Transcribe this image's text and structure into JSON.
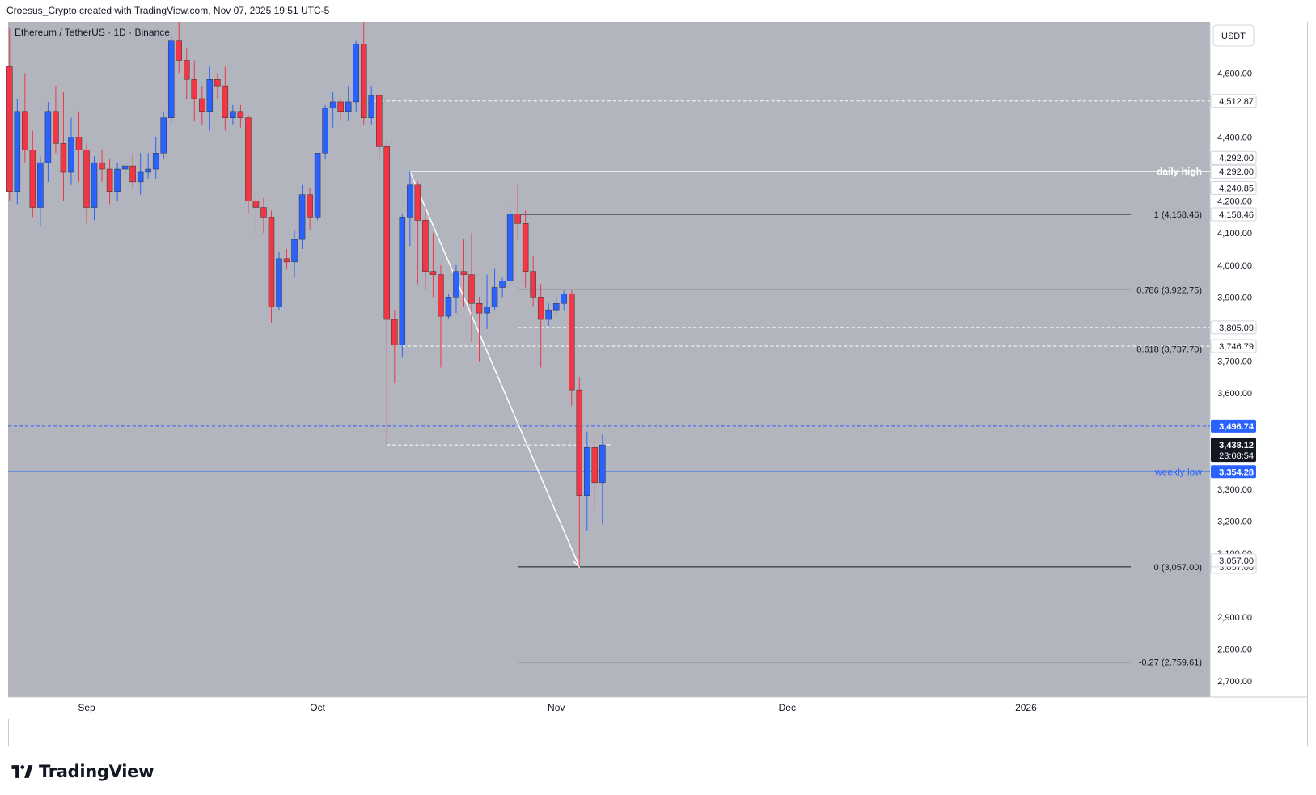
{
  "header": {
    "attribution": "Croesus_Crypto created with TradingView.com, Nov 07, 2025 19:51 UTC-5"
  },
  "chart_data": {
    "type": "candlestick",
    "symbol_line": "Ethereum / TetherUS · 1D · Binance",
    "currency": "USDT",
    "ylim": [
      2650,
      4760
    ],
    "y_ticks": [
      2700,
      2800,
      2900,
      3100,
      3200,
      3300,
      3600,
      3700,
      3900,
      4000,
      4100,
      4200,
      4400,
      4600
    ],
    "x_labels": [
      {
        "label": "Sep",
        "date": "2025-09-01"
      },
      {
        "label": "Oct",
        "date": "2025-10-01"
      },
      {
        "label": "Nov",
        "date": "2025-11-01"
      },
      {
        "label": "Dec",
        "date": "2025-12-01"
      },
      {
        "label": "2026",
        "date": "2026-01-01"
      }
    ],
    "candles": [
      {
        "date": "2025-08-22",
        "o": 4620,
        "h": 4740,
        "l": 4200,
        "c": 4230
      },
      {
        "date": "2025-08-23",
        "o": 4230,
        "h": 4520,
        "l": 4190,
        "c": 4480
      },
      {
        "date": "2025-08-24",
        "o": 4480,
        "h": 4600,
        "l": 4320,
        "c": 4360
      },
      {
        "date": "2025-08-25",
        "o": 4360,
        "h": 4420,
        "l": 4150,
        "c": 4180
      },
      {
        "date": "2025-08-26",
        "o": 4180,
        "h": 4340,
        "l": 4120,
        "c": 4320
      },
      {
        "date": "2025-08-27",
        "o": 4320,
        "h": 4510,
        "l": 4260,
        "c": 4480
      },
      {
        "date": "2025-08-28",
        "o": 4480,
        "h": 4560,
        "l": 4350,
        "c": 4380
      },
      {
        "date": "2025-08-29",
        "o": 4380,
        "h": 4540,
        "l": 4200,
        "c": 4290
      },
      {
        "date": "2025-08-30",
        "o": 4290,
        "h": 4460,
        "l": 4250,
        "c": 4400
      },
      {
        "date": "2025-08-31",
        "o": 4400,
        "h": 4480,
        "l": 4260,
        "c": 4360
      },
      {
        "date": "2025-09-01",
        "o": 4360,
        "h": 4380,
        "l": 4130,
        "c": 4180
      },
      {
        "date": "2025-09-02",
        "o": 4180,
        "h": 4340,
        "l": 4140,
        "c": 4320
      },
      {
        "date": "2025-09-03",
        "o": 4320,
        "h": 4360,
        "l": 4260,
        "c": 4300
      },
      {
        "date": "2025-09-04",
        "o": 4300,
        "h": 4330,
        "l": 4190,
        "c": 4230
      },
      {
        "date": "2025-09-05",
        "o": 4230,
        "h": 4320,
        "l": 4200,
        "c": 4300
      },
      {
        "date": "2025-09-06",
        "o": 4300,
        "h": 4320,
        "l": 4280,
        "c": 4310
      },
      {
        "date": "2025-09-07",
        "o": 4310,
        "h": 4345,
        "l": 4240,
        "c": 4260
      },
      {
        "date": "2025-09-08",
        "o": 4260,
        "h": 4350,
        "l": 4220,
        "c": 4290
      },
      {
        "date": "2025-09-09",
        "o": 4290,
        "h": 4350,
        "l": 4270,
        "c": 4300
      },
      {
        "date": "2025-09-10",
        "o": 4300,
        "h": 4400,
        "l": 4270,
        "c": 4350
      },
      {
        "date": "2025-09-11",
        "o": 4350,
        "h": 4480,
        "l": 4330,
        "c": 4460
      },
      {
        "date": "2025-09-12",
        "o": 4460,
        "h": 4720,
        "l": 4440,
        "c": 4700
      },
      {
        "date": "2025-09-13",
        "o": 4700,
        "h": 4760,
        "l": 4600,
        "c": 4640
      },
      {
        "date": "2025-09-14",
        "o": 4640,
        "h": 4680,
        "l": 4520,
        "c": 4580
      },
      {
        "date": "2025-09-15",
        "o": 4580,
        "h": 4640,
        "l": 4450,
        "c": 4520
      },
      {
        "date": "2025-09-16",
        "o": 4520,
        "h": 4560,
        "l": 4440,
        "c": 4480
      },
      {
        "date": "2025-09-17",
        "o": 4480,
        "h": 4620,
        "l": 4420,
        "c": 4580
      },
      {
        "date": "2025-09-18",
        "o": 4580,
        "h": 4600,
        "l": 4520,
        "c": 4560
      },
      {
        "date": "2025-09-19",
        "o": 4560,
        "h": 4620,
        "l": 4420,
        "c": 4460
      },
      {
        "date": "2025-09-20",
        "o": 4460,
        "h": 4500,
        "l": 4440,
        "c": 4480
      },
      {
        "date": "2025-09-21",
        "o": 4480,
        "h": 4500,
        "l": 4430,
        "c": 4460
      },
      {
        "date": "2025-09-22",
        "o": 4460,
        "h": 4470,
        "l": 4160,
        "c": 4200
      },
      {
        "date": "2025-09-23",
        "o": 4200,
        "h": 4240,
        "l": 4100,
        "c": 4180
      },
      {
        "date": "2025-09-24",
        "o": 4180,
        "h": 4210,
        "l": 4100,
        "c": 4150
      },
      {
        "date": "2025-09-25",
        "o": 4150,
        "h": 4170,
        "l": 3820,
        "c": 3870
      },
      {
        "date": "2025-09-26",
        "o": 3870,
        "h": 4040,
        "l": 3860,
        "c": 4020
      },
      {
        "date": "2025-09-27",
        "o": 4020,
        "h": 4050,
        "l": 3990,
        "c": 4010
      },
      {
        "date": "2025-09-28",
        "o": 4010,
        "h": 4110,
        "l": 3960,
        "c": 4080
      },
      {
        "date": "2025-09-29",
        "o": 4080,
        "h": 4250,
        "l": 4050,
        "c": 4220
      },
      {
        "date": "2025-09-30",
        "o": 4220,
        "h": 4240,
        "l": 4110,
        "c": 4150
      },
      {
        "date": "2025-10-01",
        "o": 4150,
        "h": 4350,
        "l": 4140,
        "c": 4350
      },
      {
        "date": "2025-10-02",
        "o": 4350,
        "h": 4500,
        "l": 4330,
        "c": 4490
      },
      {
        "date": "2025-10-03",
        "o": 4490,
        "h": 4540,
        "l": 4430,
        "c": 4510
      },
      {
        "date": "2025-10-04",
        "o": 4510,
        "h": 4520,
        "l": 4450,
        "c": 4480
      },
      {
        "date": "2025-10-05",
        "o": 4480,
        "h": 4560,
        "l": 4450,
        "c": 4510
      },
      {
        "date": "2025-10-06",
        "o": 4510,
        "h": 4700,
        "l": 4480,
        "c": 4690
      },
      {
        "date": "2025-10-07",
        "o": 4690,
        "h": 4760,
        "l": 4440,
        "c": 4460
      },
      {
        "date": "2025-10-08",
        "o": 4460,
        "h": 4560,
        "l": 4440,
        "c": 4530
      },
      {
        "date": "2025-10-09",
        "o": 4530,
        "h": 4530,
        "l": 4330,
        "c": 4370
      },
      {
        "date": "2025-10-10",
        "o": 4370,
        "h": 4390,
        "l": 3440,
        "c": 3830
      },
      {
        "date": "2025-10-11",
        "o": 3830,
        "h": 3860,
        "l": 3630,
        "c": 3750
      },
      {
        "date": "2025-10-12",
        "o": 3750,
        "h": 4160,
        "l": 3710,
        "c": 4150
      },
      {
        "date": "2025-10-13",
        "o": 4150,
        "h": 4292,
        "l": 4060,
        "c": 4250
      },
      {
        "date": "2025-10-14",
        "o": 4250,
        "h": 4260,
        "l": 3940,
        "c": 4140
      },
      {
        "date": "2025-10-15",
        "o": 4140,
        "h": 4180,
        "l": 3920,
        "c": 3980
      },
      {
        "date": "2025-10-16",
        "o": 3980,
        "h": 4100,
        "l": 3900,
        "c": 3970
      },
      {
        "date": "2025-10-17",
        "o": 3970,
        "h": 4000,
        "l": 3680,
        "c": 3840
      },
      {
        "date": "2025-10-18",
        "o": 3840,
        "h": 3910,
        "l": 3830,
        "c": 3900
      },
      {
        "date": "2025-10-19",
        "o": 3900,
        "h": 4000,
        "l": 3850,
        "c": 3980
      },
      {
        "date": "2025-10-20",
        "o": 3980,
        "h": 4080,
        "l": 3870,
        "c": 3970
      },
      {
        "date": "2025-10-21",
        "o": 3970,
        "h": 4100,
        "l": 3760,
        "c": 3880
      },
      {
        "date": "2025-10-22",
        "o": 3880,
        "h": 3900,
        "l": 3700,
        "c": 3850
      },
      {
        "date": "2025-10-23",
        "o": 3850,
        "h": 3970,
        "l": 3800,
        "c": 3870
      },
      {
        "date": "2025-10-24",
        "o": 3870,
        "h": 3990,
        "l": 3860,
        "c": 3930
      },
      {
        "date": "2025-10-25",
        "o": 3930,
        "h": 3960,
        "l": 3900,
        "c": 3950
      },
      {
        "date": "2025-10-26",
        "o": 3950,
        "h": 4190,
        "l": 3940,
        "c": 4160
      },
      {
        "date": "2025-10-27",
        "o": 4160,
        "h": 4250,
        "l": 4080,
        "c": 4130
      },
      {
        "date": "2025-10-28",
        "o": 4130,
        "h": 4170,
        "l": 3930,
        "c": 3980
      },
      {
        "date": "2025-10-29",
        "o": 3980,
        "h": 4030,
        "l": 3870,
        "c": 3900
      },
      {
        "date": "2025-10-30",
        "o": 3900,
        "h": 3940,
        "l": 3680,
        "c": 3830
      },
      {
        "date": "2025-10-31",
        "o": 3830,
        "h": 3880,
        "l": 3810,
        "c": 3860
      },
      {
        "date": "2025-11-01",
        "o": 3860,
        "h": 3900,
        "l": 3840,
        "c": 3880
      },
      {
        "date": "2025-11-02",
        "o": 3880,
        "h": 3920,
        "l": 3860,
        "c": 3910
      },
      {
        "date": "2025-11-03",
        "o": 3910,
        "h": 3920,
        "l": 3560,
        "c": 3610
      },
      {
        "date": "2025-11-04",
        "o": 3610,
        "h": 3650,
        "l": 3057,
        "c": 3280
      },
      {
        "date": "2025-11-05",
        "o": 3280,
        "h": 3480,
        "l": 3170,
        "c": 3430
      },
      {
        "date": "2025-11-06",
        "o": 3430,
        "h": 3460,
        "l": 3240,
        "c": 3320
      },
      {
        "date": "2025-11-07",
        "o": 3320,
        "h": 3470,
        "l": 3190,
        "c": 3438.12
      }
    ],
    "horizontal_levels": [
      {
        "label": "4,512.87",
        "value": 4512.87,
        "style": "dashed-white"
      },
      {
        "label": "4,292.00",
        "value": 4292.0,
        "style": "white",
        "note": "daily high"
      },
      {
        "label": "4,240.85",
        "value": 4240.85,
        "style": "dashed-white"
      },
      {
        "label": "3,805.09",
        "value": 3805.09,
        "style": "dashed-white"
      },
      {
        "label": "3,746.79",
        "value": 3746.79,
        "style": "dashed-white"
      },
      {
        "label": "3,496.74",
        "value": 3496.74,
        "style": "dashed-blue"
      },
      {
        "label": "3,438.12",
        "value": 3438.12,
        "style": "dashed-white",
        "countdown": "23:08:54"
      },
      {
        "label": "3,354.28",
        "value": 3354.28,
        "style": "solid-blue",
        "note": "weekly low"
      },
      {
        "label": "3,057.00",
        "value": 3057.0,
        "style": "plain"
      }
    ],
    "fib_levels": [
      {
        "label": "1 (4,158.46)",
        "value": 4158.46,
        "axis": "4,158.46"
      },
      {
        "label": "0.786 (3,922.75)",
        "value": 3922.75,
        "axis": ""
      },
      {
        "label": "0.618 (3,737.70)",
        "value": 3737.7,
        "axis": ""
      },
      {
        "label": "0 (3,057.00)",
        "value": 3057.0,
        "axis": "3,057.00"
      },
      {
        "label": "-0.27 (2,759.61)",
        "value": 2759.61,
        "axis": ""
      }
    ],
    "fib_start_date": "2025-10-27",
    "arrow": {
      "from": {
        "date": "2025-10-13",
        "value": 4292
      },
      "to": {
        "date": "2025-11-04",
        "value": 3057
      }
    },
    "colors": {
      "background": "#b2b5be",
      "up": "#2962ff",
      "down": "#f23645",
      "blue_line": "#2962ff"
    }
  },
  "footer": {
    "brand": "TradingView"
  }
}
